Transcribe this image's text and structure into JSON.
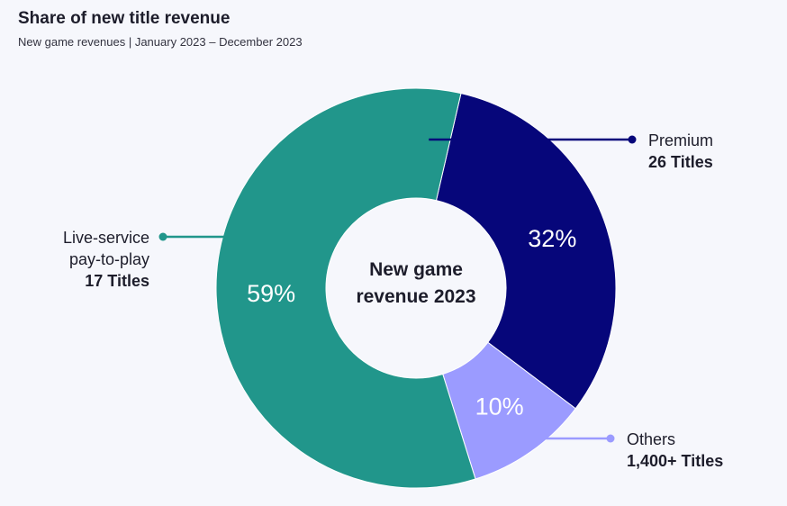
{
  "header": {
    "title": "Share of new title revenue",
    "subtitle": "New game revenues | January 2023 – December 2023"
  },
  "chart_data": {
    "type": "pie",
    "center_label": [
      "New game",
      "revenue 2023"
    ],
    "slices": [
      {
        "name": "Premium",
        "value": 32,
        "display": "32%",
        "detail": "26 Titles",
        "color": "#06067a"
      },
      {
        "name": "Others",
        "value": 10,
        "display": "10%",
        "detail": "1,400+ Titles",
        "color": "#9b9bff"
      },
      {
        "name": "Live-service pay-to-play",
        "name_lines": [
          "Live-service",
          "pay-to-play"
        ],
        "value": 59,
        "display": "59%",
        "detail": "17 Titles",
        "color": "#21968b"
      }
    ]
  }
}
